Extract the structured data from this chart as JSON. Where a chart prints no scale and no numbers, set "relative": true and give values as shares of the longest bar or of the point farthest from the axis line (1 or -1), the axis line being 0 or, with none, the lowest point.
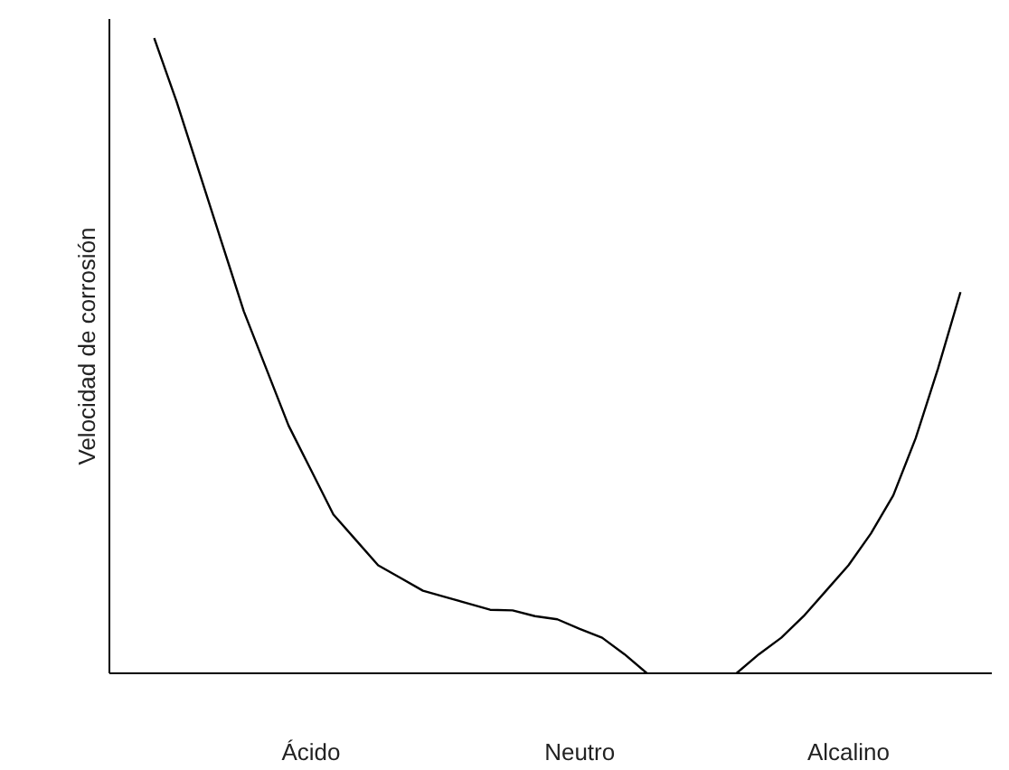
{
  "chart_data": {
    "type": "line",
    "relative": true,
    "ylabel": "Velocidad de corrosión",
    "tick_labels": "x",
    "grid": false,
    "marker": "none",
    "line_style": "solid",
    "categories": [
      null,
      null,
      null,
      null,
      null,
      null,
      null,
      "Ácido",
      null,
      null,
      null,
      null,
      null,
      null,
      null,
      null,
      null,
      null,
      null,
      "Neutro",
      null,
      null,
      null,
      null,
      null,
      null,
      null,
      null,
      null,
      null,
      null,
      "Alcalino",
      null,
      null,
      null,
      null,
      null
    ],
    "series": [
      {
        "color": "#000000",
        "values": [
          1.0,
          0.9,
          0.79,
          0.68,
          0.57,
          0.48,
          0.39,
          0.32,
          0.25,
          0.21,
          0.17,
          0.15,
          0.13,
          0.12,
          0.11,
          0.1,
          0.099,
          0.09,
          0.085,
          0.07,
          0.056,
          0.03,
          0,
          null,
          null,
          null,
          0,
          0.03,
          0.056,
          0.09,
          0.13,
          0.17,
          0.22,
          0.28,
          0.37,
          0.48,
          0.6
        ]
      }
    ]
  }
}
